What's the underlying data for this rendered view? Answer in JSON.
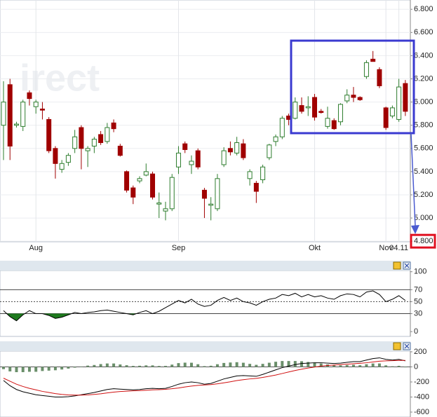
{
  "watermark": "irect",
  "chart_data": [
    {
      "type": "candlestick",
      "categories": [
        null,
        null,
        null,
        null,
        null,
        "Aug",
        null,
        null,
        null,
        null,
        null,
        null,
        null,
        null,
        null,
        null,
        null,
        null,
        null,
        null,
        null,
        null,
        null,
        null,
        null,
        null,
        null,
        "Sep",
        null,
        null,
        null,
        null,
        null,
        null,
        null,
        null,
        null,
        null,
        null,
        null,
        null,
        null,
        null,
        null,
        null,
        null,
        null,
        null,
        "Okt",
        null,
        null,
        null,
        null,
        null,
        null,
        null,
        null,
        null,
        null,
        "Nov",
        null,
        "04.11",
        null
      ],
      "open": [
        5800,
        6150,
        5800,
        5790,
        6080,
        5960,
        5940,
        5850,
        5600,
        5420,
        5480,
        5600,
        5780,
        5580,
        5620,
        5720,
        5660,
        5820,
        5620,
        5400,
        5260,
        5320,
        5370,
        5380,
        5120,
        5060,
        5080,
        5440,
        5640,
        5460,
        5580,
        5240,
        5110,
        5080,
        5460,
        5600,
        5560,
        5640,
        5340,
        5300,
        5330,
        5520,
        5660,
        5700,
        5880,
        5860,
        5970,
        5950,
        6040,
        5920,
        5790,
        5840,
        5830,
        6010,
        6060,
        6040,
        6220,
        6370,
        6280,
        5950,
        5880,
        5850,
        6160
      ],
      "high": [
        6180,
        6200,
        5830,
        6020,
        6100,
        6020,
        6000,
        5870,
        5620,
        5500,
        5560,
        5760,
        5800,
        5620,
        5700,
        5750,
        5820,
        5850,
        5640,
        5410,
        5280,
        5360,
        5470,
        5400,
        5220,
        5140,
        5380,
        5620,
        5660,
        5540,
        5600,
        5260,
        5180,
        5380,
        5610,
        5660,
        5700,
        5680,
        5420,
        5320,
        5460,
        5640,
        5720,
        5880,
        5900,
        6040,
        6040,
        6050,
        6070,
        5940,
        5960,
        5860,
        5990,
        6110,
        6130,
        6050,
        6360,
        6440,
        6300,
        5960,
        5970,
        6200,
        6190
      ],
      "low": [
        5500,
        5500,
        5780,
        5750,
        5970,
        5900,
        5850,
        5560,
        5340,
        5390,
        5450,
        5560,
        5420,
        5440,
        5560,
        5630,
        5640,
        5740,
        5530,
        5220,
        5120,
        5300,
        5360,
        5160,
        5000,
        4980,
        5060,
        5380,
        5560,
        5380,
        5420,
        5000,
        4980,
        5060,
        5440,
        5540,
        5540,
        5500,
        5280,
        5130,
        5300,
        5500,
        5620,
        5680,
        5800,
        5850,
        5900,
        5880,
        5840,
        5900,
        5770,
        5760,
        5800,
        5990,
        6000,
        6010,
        6200,
        6360,
        6120,
        5760,
        5860,
        5830,
        5880
      ],
      "close": [
        6000,
        5620,
        5810,
        6000,
        6030,
        6000,
        5930,
        5580,
        5470,
        5470,
        5540,
        5700,
        5600,
        5600,
        5680,
        5650,
        5780,
        5770,
        5540,
        5240,
        5180,
        5340,
        5400,
        5180,
        5130,
        5080,
        5350,
        5560,
        5590,
        5490,
        5440,
        5170,
        5120,
        5340,
        5580,
        5570,
        5650,
        5520,
        5400,
        5230,
        5440,
        5630,
        5700,
        5860,
        5850,
        6000,
        5920,
        5960,
        5870,
        5910,
        5860,
        5770,
        5980,
        6060,
        6040,
        6020,
        6340,
        6350,
        6140,
        5780,
        5950,
        6130,
        5920
      ],
      "up_color": "#2e7d2e",
      "down_color": "#a00000",
      "ylim": [
        4795,
        6880
      ],
      "yticks": [
        {
          "value": 6800,
          "label": "6.800"
        },
        {
          "value": 6600,
          "label": "6.600"
        },
        {
          "value": 6400,
          "label": "6.400"
        },
        {
          "value": 6200,
          "label": "6.200"
        },
        {
          "value": 6000,
          "label": "6.000"
        },
        {
          "value": 5800,
          "label": "5.800"
        },
        {
          "value": 5600,
          "label": "5.600"
        },
        {
          "value": 5400,
          "label": "5.400"
        },
        {
          "value": 5200,
          "label": "5.200"
        },
        {
          "value": 5000,
          "label": "5.000"
        },
        {
          "value": 4800,
          "label": "4.800"
        }
      ],
      "grid": true
    },
    {
      "type": "oscillator",
      "series": [
        {
          "color": "#000000",
          "values": [
            35,
            25,
            18,
            28,
            35,
            30,
            30,
            27,
            22,
            24,
            28,
            32,
            30,
            32,
            33,
            35,
            36,
            34,
            32,
            30,
            28,
            32,
            35,
            30,
            34,
            40,
            46,
            52,
            48,
            54,
            46,
            42,
            44,
            52,
            57,
            52,
            56,
            50,
            48,
            44,
            50,
            54,
            56,
            62,
            60,
            64,
            58,
            62,
            58,
            60,
            56,
            54,
            60,
            63,
            62,
            58,
            66,
            68,
            62,
            50,
            54,
            60,
            52
          ]
        }
      ],
      "ylim": [
        -8,
        102
      ],
      "yticks": [
        100,
        70,
        50,
        30,
        0
      ],
      "levels": [
        70,
        30
      ],
      "midline": 50,
      "fill_below": 30,
      "fill_color": "#1e7a1e"
    },
    {
      "type": "macd",
      "series": [
        {
          "color": "#000000",
          "values": [
            -180,
            -250,
            -300,
            -330,
            -350,
            -370,
            -380,
            -390,
            -400,
            -400,
            -395,
            -385,
            -370,
            -355,
            -340,
            -320,
            -300,
            -290,
            -295,
            -300,
            -305,
            -300,
            -290,
            -285,
            -290,
            -285,
            -260,
            -230,
            -210,
            -200,
            -210,
            -230,
            -220,
            -190,
            -160,
            -140,
            -120,
            -115,
            -120,
            -125,
            -100,
            -70,
            -40,
            -10,
            10,
            30,
            45,
            50,
            55,
            55,
            50,
            45,
            50,
            60,
            70,
            70,
            90,
            110,
            120,
            100,
            90,
            100,
            80
          ]
        },
        {
          "color": "#d01010",
          "values": [
            -150,
            -190,
            -230,
            -260,
            -285,
            -305,
            -325,
            -340,
            -355,
            -365,
            -372,
            -375,
            -375,
            -372,
            -365,
            -357,
            -345,
            -335,
            -327,
            -322,
            -318,
            -315,
            -310,
            -305,
            -302,
            -298,
            -290,
            -280,
            -266,
            -255,
            -245,
            -240,
            -235,
            -225,
            -212,
            -198,
            -182,
            -170,
            -160,
            -152,
            -140,
            -125,
            -108,
            -88,
            -68,
            -48,
            -30,
            -15,
            -2,
            10,
            18,
            24,
            30,
            36,
            42,
            48,
            55,
            65,
            75,
            80,
            82,
            86,
            86
          ]
        }
      ],
      "histogram": {
        "color": "#6a8f6a",
        "values": [
          -30,
          -60,
          -70,
          -70,
          -65,
          -65,
          -55,
          -50,
          -45,
          -35,
          -23,
          -10,
          5,
          17,
          25,
          37,
          45,
          45,
          32,
          22,
          13,
          15,
          20,
          20,
          12,
          13,
          30,
          50,
          56,
          55,
          35,
          10,
          15,
          35,
          52,
          58,
          62,
          55,
          40,
          27,
          40,
          55,
          68,
          78,
          78,
          78,
          75,
          65,
          57,
          45,
          32,
          21,
          20,
          24,
          28,
          22,
          35,
          45,
          45,
          20,
          8,
          14,
          -6
        ]
      },
      "ylim": [
        -665,
        209
      ],
      "yticks": [
        200,
        0,
        -200,
        -400,
        -600
      ]
    }
  ]
}
